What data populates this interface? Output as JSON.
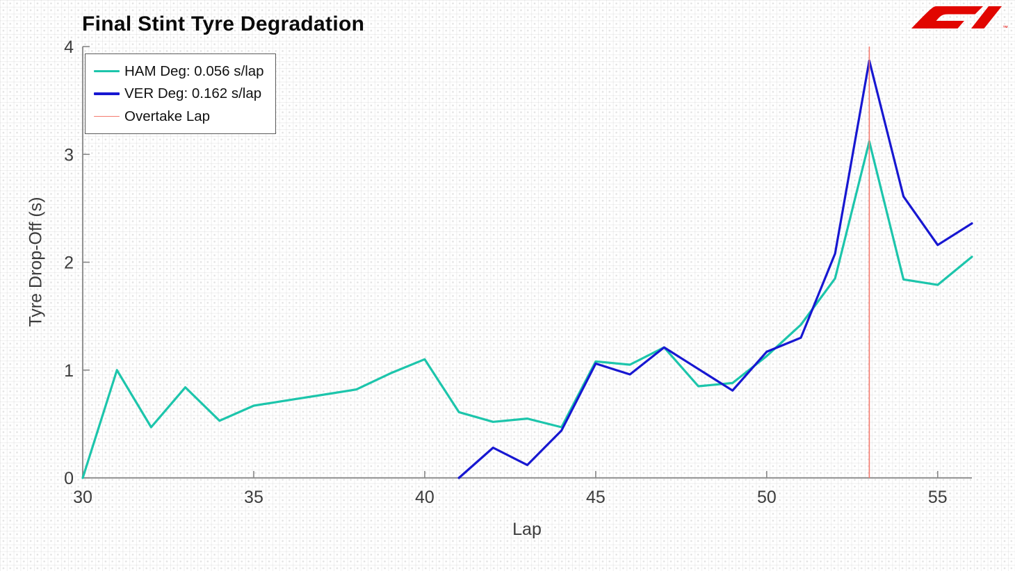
{
  "logo": {
    "alt": "F1",
    "tm": "™",
    "color": "#e10600"
  },
  "chart_data": {
    "type": "line",
    "title": "Final Stint Tyre Degradation",
    "xlabel": "Lap",
    "ylabel": "Tyre Drop-Off (s)",
    "xlim": [
      30,
      56
    ],
    "ylim": [
      0,
      4
    ],
    "x_ticks": [
      30,
      35,
      40,
      45,
      50,
      55
    ],
    "y_ticks": [
      0,
      1,
      2,
      3,
      4
    ],
    "grid": true,
    "legend_position": "upper left",
    "axis_color": "#878787",
    "tick_label_color": "#3c3c3c",
    "series": [
      {
        "id": "ham-line",
        "name": "HAM Deg: 0.056 s/lap",
        "driver": "HAM",
        "deg_rate_s_per_lap": 0.056,
        "color": "#1cc5ab",
        "width": 3.2,
        "x": [
          30,
          31,
          32,
          33,
          34,
          35,
          36,
          37,
          38,
          39,
          40,
          41,
          42,
          43,
          44,
          45,
          46,
          47,
          48,
          49,
          50,
          51,
          52,
          53,
          54,
          55,
          56
        ],
        "y": [
          0.0,
          1.0,
          0.47,
          0.84,
          0.53,
          0.67,
          0.72,
          0.77,
          0.82,
          0.97,
          1.1,
          0.61,
          0.52,
          0.55,
          0.47,
          1.08,
          1.05,
          1.21,
          0.85,
          0.88,
          1.13,
          1.42,
          1.85,
          3.12,
          1.84,
          1.79,
          2.05
        ]
      },
      {
        "id": "ver-line",
        "name": "VER Deg: 0.162 s/lap",
        "driver": "VER",
        "deg_rate_s_per_lap": 0.162,
        "color": "#1717d1",
        "width": 3.2,
        "x": [
          41,
          42,
          43,
          44,
          45,
          46,
          47,
          48,
          49,
          50,
          51,
          52,
          53,
          54,
          55,
          56
        ],
        "y": [
          0.0,
          0.28,
          0.12,
          0.44,
          1.06,
          0.96,
          1.21,
          1.01,
          0.81,
          1.17,
          1.3,
          2.08,
          3.87,
          2.61,
          2.16,
          2.36
        ]
      }
    ],
    "vline": {
      "id": "overtake-line",
      "name": "Overtake Lap",
      "x": 53,
      "color": "#f4796d",
      "width": 1.6
    }
  }
}
